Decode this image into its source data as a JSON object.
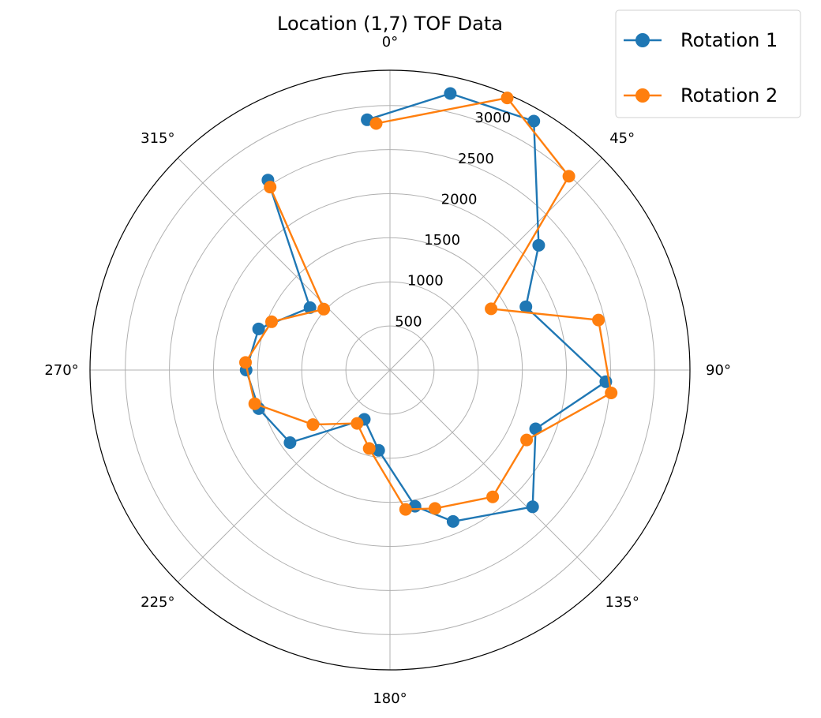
{
  "chart_data": {
    "type": "scatter",
    "projection": "polar",
    "title": "Location (1,7) TOF Data",
    "theta_direction": "clockwise",
    "theta_zero": "top",
    "angle_ticks": [
      0,
      45,
      90,
      135,
      180,
      225,
      270,
      315
    ],
    "angle_tick_labels": [
      "0°",
      "45°",
      "90°",
      "135°",
      "180°",
      "225°",
      "270°",
      "315°"
    ],
    "angle_grid_deg": [
      0,
      45,
      90,
      135,
      180,
      225,
      270,
      315
    ],
    "radial_ticks": [
      500,
      1000,
      1500,
      2000,
      2500,
      3000
    ],
    "radial_tick_labels": [
      "500",
      "1000",
      "1500",
      "2000",
      "2500",
      "3000"
    ],
    "radial_grid": [
      500,
      1000,
      1500,
      2000,
      2500,
      3000
    ],
    "rmax": 3400,
    "rlabel_position_deg": 22.5,
    "grid": true,
    "legend_position": "top-right",
    "series": [
      {
        "name": "Rotation 1",
        "color": "#1f77b4",
        "points": [
          {
            "theta": -5.2,
            "r": 2850
          },
          {
            "theta": 12.3,
            "r": 3210
          },
          {
            "theta": 30.0,
            "r": 3260
          },
          {
            "theta": 50.0,
            "r": 2200
          },
          {
            "theta": 65.0,
            "r": 1700
          },
          {
            "theta": 93.1,
            "r": 2450
          },
          {
            "theta": 112.0,
            "r": 1780
          },
          {
            "theta": 133.8,
            "r": 2240
          },
          {
            "theta": 157.4,
            "r": 1860
          },
          {
            "theta": 169.6,
            "r": 1570
          },
          {
            "theta": 188.0,
            "r": 920
          },
          {
            "theta": 207.5,
            "r": 630
          },
          {
            "theta": 234.0,
            "r": 1400
          },
          {
            "theta": 253.6,
            "r": 1550
          },
          {
            "theta": 270.0,
            "r": 1630
          },
          {
            "theta": 287.4,
            "r": 1560
          },
          {
            "theta": 308.0,
            "r": 1150
          },
          {
            "theta": 327.3,
            "r": 2560
          }
        ]
      },
      {
        "name": "Rotation 2",
        "color": "#ff7f0e",
        "points": [
          {
            "theta": -3.2,
            "r": 2800
          },
          {
            "theta": 23.3,
            "r": 3360
          },
          {
            "theta": 42.7,
            "r": 2990
          },
          {
            "theta": 58.8,
            "r": 1340
          },
          {
            "theta": 76.5,
            "r": 2430
          },
          {
            "theta": 95.9,
            "r": 2520
          },
          {
            "theta": 117.1,
            "r": 1740
          },
          {
            "theta": 141.0,
            "r": 1850
          },
          {
            "theta": 162.0,
            "r": 1650
          },
          {
            "theta": 173.6,
            "r": 1590
          },
          {
            "theta": 194.8,
            "r": 920
          },
          {
            "theta": 211.6,
            "r": 710
          },
          {
            "theta": 234.7,
            "r": 1070
          },
          {
            "theta": 256.0,
            "r": 1580
          },
          {
            "theta": 273.0,
            "r": 1640
          },
          {
            "theta": 292.2,
            "r": 1450
          },
          {
            "theta": 312.6,
            "r": 1020
          },
          {
            "theta": 326.8,
            "r": 2480
          }
        ]
      }
    ]
  }
}
